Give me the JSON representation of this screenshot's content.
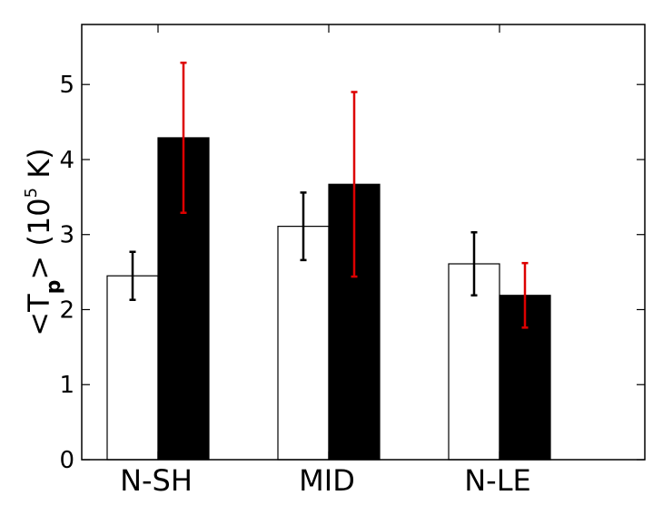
{
  "chart_data": {
    "type": "bar",
    "categories": [
      "N-SH",
      "MID",
      "N-LE"
    ],
    "series": [
      {
        "fill": "#ffffff",
        "edge": "#000000",
        "values": [
          2.45,
          3.11,
          2.61
        ],
        "err": [
          0.32,
          0.45,
          0.42
        ],
        "err_color": "#000000"
      },
      {
        "fill": "#000000",
        "edge": "#000000",
        "values": [
          4.29,
          3.67,
          2.19
        ],
        "err": [
          1.0,
          1.23,
          0.43
        ],
        "err_color": "#dd0000"
      }
    ],
    "ylim": [
      0,
      5.8
    ],
    "yticks": [
      0,
      1,
      2,
      3,
      4,
      5
    ],
    "ylabel": {
      "prefix": "<T",
      "subscript": "p",
      "middle": "> (10",
      "superscript": "5",
      "suffix": " K)"
    },
    "grid": false,
    "legend": "none"
  }
}
